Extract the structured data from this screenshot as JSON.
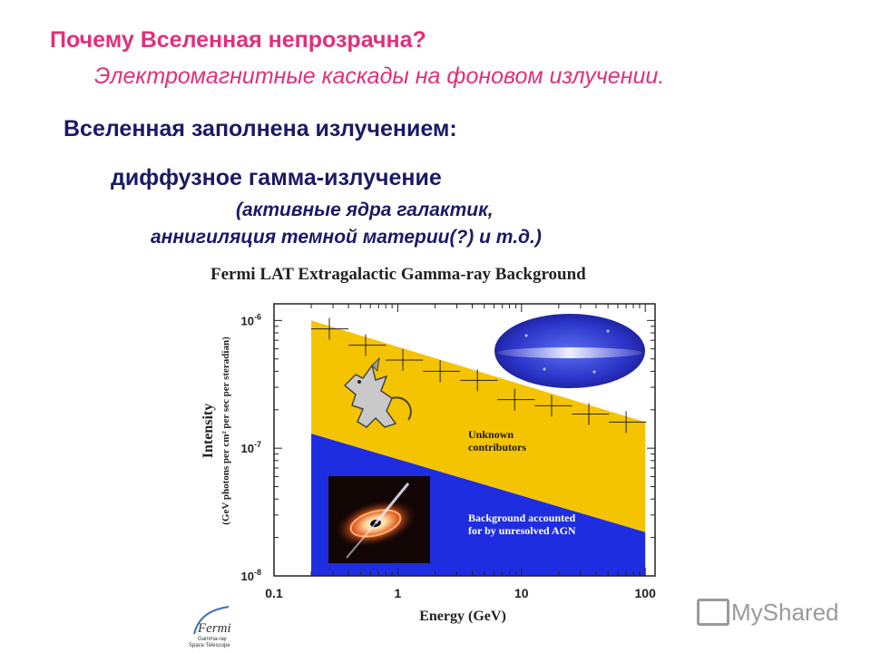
{
  "slide": {
    "title": "Почему Вселенная непрозрачна?",
    "subtitle": "Электромагнитные каскады на фоновом излучении.",
    "heading": "Вселенная заполнена излучением:",
    "subheading": "диффузное гамма-излучение",
    "note_line1": "(активные ядра галактик,",
    "note_line2": "аннигиляция темной материи(?) и т.д.)"
  },
  "chart_data": {
    "type": "area",
    "title": "Fermi LAT Extragalactic Gamma-ray Background",
    "xlabel": "Energy (GeV)",
    "ylabel": "Intensity",
    "ylabel_units": "(GeV photons per cm² per sec per steradian)",
    "x_scale": "log",
    "y_scale": "log",
    "xlim": [
      0.1,
      120
    ],
    "ylim": [
      1e-08,
      1.35e-06
    ],
    "x_ticks": [
      0.1,
      1,
      10,
      100
    ],
    "x_tick_labels": [
      "0.1",
      "1",
      "10",
      "100"
    ],
    "y_ticks": [
      1e-06,
      1e-07,
      1e-08
    ],
    "y_tick_labels": [
      {
        "base": "10",
        "exp": "-6"
      },
      {
        "base": "10",
        "exp": "-7"
      },
      {
        "base": "10",
        "exp": "-8"
      }
    ],
    "bands": [
      {
        "name": "Unknown contributors",
        "color": "#f5c400",
        "x": [
          0.2,
          100
        ],
        "y_upper": [
          1e-06,
          1.6e-07
        ],
        "y_lower": [
          1.3e-07,
          2.2e-08
        ]
      },
      {
        "name": "Background accounted for by unresolved AGN",
        "color": "#1f2de0",
        "x": [
          0.2,
          100
        ],
        "y_upper": [
          1.3e-07,
          2.2e-08
        ],
        "y_lower": [
          1e-08,
          1e-08
        ]
      }
    ],
    "annotations": [
      {
        "text": [
          "Unknown",
          "contributors"
        ],
        "color": "#1a1a1a"
      },
      {
        "text": [
          "Background accounted",
          "for by unresolved AGN"
        ],
        "color": "#ffffff"
      }
    ],
    "measurements": [
      {
        "x": 0.28,
        "y": 8.6e-07,
        "xerr": [
          0.2,
          0.4
        ]
      },
      {
        "x": 0.55,
        "y": 6.4e-07,
        "xerr": [
          0.4,
          0.8
        ]
      },
      {
        "x": 1.1,
        "y": 4.9e-07,
        "xerr": [
          0.8,
          1.6
        ]
      },
      {
        "x": 2.2,
        "y": 4e-07,
        "xerr": [
          1.6,
          3.2
        ]
      },
      {
        "x": 4.4,
        "y": 3.4e-07,
        "xerr": [
          3.2,
          6.4
        ]
      },
      {
        "x": 8.8,
        "y": 2.4e-07,
        "xerr": [
          6.4,
          12.8
        ]
      },
      {
        "x": 17.5,
        "y": 2.15e-07,
        "xerr": [
          12.8,
          25.6
        ]
      },
      {
        "x": 35,
        "y": 1.85e-07,
        "xerr": [
          25.6,
          51
        ]
      },
      {
        "x": 70,
        "y": 1.6e-07,
        "xerr": [
          51,
          102
        ]
      }
    ],
    "grid": false
  },
  "logo": {
    "line1": "Gamma-ray",
    "line2": "Space Telescope"
  },
  "watermark": {
    "text": "MyShared"
  }
}
